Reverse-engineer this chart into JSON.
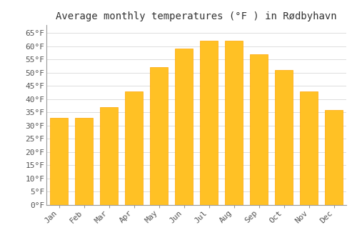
{
  "title": "Average monthly temperatures (°F ) in Rødbyhavn",
  "months": [
    "Jan",
    "Feb",
    "Mar",
    "Apr",
    "May",
    "Jun",
    "Jul",
    "Aug",
    "Sep",
    "Oct",
    "Nov",
    "Dec"
  ],
  "values": [
    33,
    33,
    37,
    43,
    52,
    59,
    62,
    62,
    57,
    51,
    43,
    36
  ],
  "bar_color_face": "#FFC125",
  "bar_color_edge": "#FFA500",
  "background_color": "#FFFFFF",
  "grid_color": "#DDDDDD",
  "yticks": [
    0,
    5,
    10,
    15,
    20,
    25,
    30,
    35,
    40,
    45,
    50,
    55,
    60,
    65
  ],
  "ylim": [
    0,
    68
  ],
  "title_fontsize": 10,
  "tick_fontsize": 8,
  "font_family": "monospace"
}
